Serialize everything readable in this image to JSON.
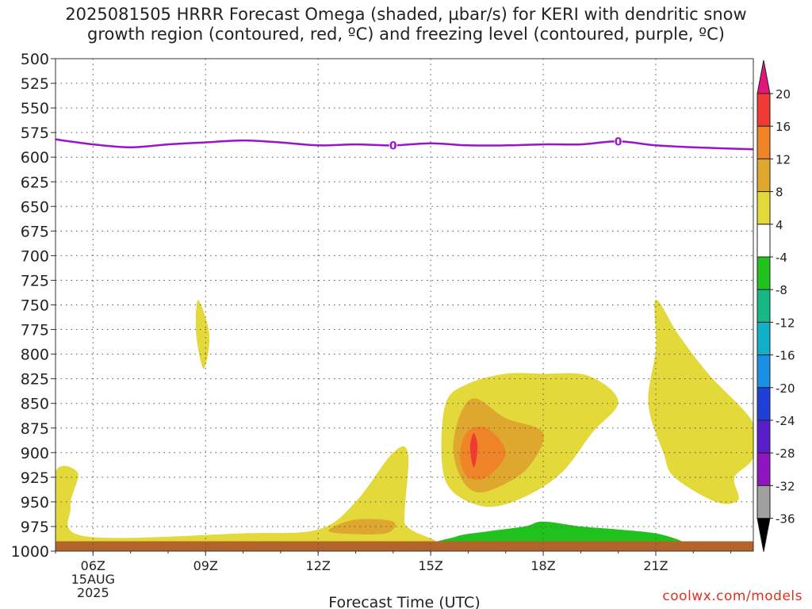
{
  "title_line1": "2025081505 HRRR Forecast Omega (shaded, µbar/s) for KERI with dendritic snow",
  "title_line2": "growth region (contoured, red, ºC) and freezing level (contoured, purple, ºC)",
  "credit": "coolwx.com/models",
  "chart_data": {
    "type": "contour",
    "xlabel": "Forecast Time (UTC)",
    "ylabel": "",
    "x_unit": "forecast hour (UTC, 15 Aug 2025)",
    "xlim": [
      5,
      23.6
    ],
    "ylim": [
      1000,
      500
    ],
    "y_ticks": [
      500,
      525,
      550,
      575,
      600,
      625,
      650,
      675,
      700,
      725,
      750,
      775,
      800,
      825,
      850,
      875,
      900,
      925,
      950,
      975,
      1000
    ],
    "x_ticks": [
      {
        "x": 6,
        "label": "06Z",
        "sub": [
          "15AUG",
          "2025"
        ]
      },
      {
        "x": 9,
        "label": "09Z",
        "sub": []
      },
      {
        "x": 12,
        "label": "12Z",
        "sub": []
      },
      {
        "x": 15,
        "label": "15Z",
        "sub": []
      },
      {
        "x": 18,
        "label": "18Z",
        "sub": []
      },
      {
        "x": 21,
        "label": "21Z",
        "sub": []
      }
    ],
    "grid": true,
    "colorbar": {
      "labels": [
        "20",
        "16",
        "12",
        "8",
        "4",
        "-4",
        "-8",
        "-12",
        "-16",
        "-20",
        "-24",
        "-28",
        "-32",
        "-36"
      ],
      "colors": [
        "#e2157a",
        "#ef3a36",
        "#ef8328",
        "#e0a72e",
        "#e3d93b",
        "#ffffff",
        "#22c21e",
        "#17b886",
        "#12b0c8",
        "#1a8fe6",
        "#1f3fd6",
        "#5a1ec8",
        "#8f16be",
        "#a0a0a0",
        "#000000"
      ]
    },
    "freezing_level": {
      "color": "#9a14c9",
      "label": "0",
      "label_points": [
        [
          14,
          588
        ],
        [
          20,
          584
        ]
      ],
      "points": [
        [
          5,
          582
        ],
        [
          6,
          587
        ],
        [
          7,
          590
        ],
        [
          8,
          587
        ],
        [
          9,
          585
        ],
        [
          10,
          583
        ],
        [
          11,
          585
        ],
        [
          12,
          588
        ],
        [
          13,
          587
        ],
        [
          14,
          588
        ],
        [
          15,
          586
        ],
        [
          16,
          588
        ],
        [
          17,
          588
        ],
        [
          18,
          587
        ],
        [
          19,
          587
        ],
        [
          20,
          584
        ],
        [
          21,
          588
        ],
        [
          22,
          590
        ],
        [
          23.6,
          592
        ]
      ]
    },
    "omega_regions": [
      {
        "level": "4 to 8",
        "color": "#e3d93b",
        "points": [
          [
            5,
            920
          ],
          [
            5.6,
            921
          ],
          [
            5.4,
            955
          ],
          [
            5.8,
            985
          ],
          [
            10,
            982
          ],
          [
            12,
            978
          ],
          [
            13,
            950
          ],
          [
            14,
            900
          ],
          [
            14.4,
            902
          ],
          [
            14.3,
            970
          ],
          [
            14.5,
            995
          ],
          [
            5,
            995
          ]
        ]
      },
      {
        "level": "4 to 8",
        "color": "#e3d93b",
        "points": [
          [
            8.8,
            745
          ],
          [
            9.1,
            780
          ],
          [
            8.95,
            815
          ],
          [
            8.75,
            780
          ]
        ]
      },
      {
        "level": "4 to 8",
        "color": "#e3d93b",
        "points": [
          [
            15.3,
            910
          ],
          [
            15.4,
            850
          ],
          [
            16,
            830
          ],
          [
            17,
            820
          ],
          [
            18,
            820
          ],
          [
            19.2,
            822
          ],
          [
            20,
            848
          ],
          [
            19.3,
            880
          ],
          [
            18.5,
            920
          ],
          [
            17.5,
            945
          ],
          [
            16.5,
            955
          ],
          [
            15.6,
            940
          ]
        ]
      },
      {
        "level": "4 to 8",
        "color": "#e3d93b",
        "points": [
          [
            20.8,
            850
          ],
          [
            21,
            795
          ],
          [
            21,
            745
          ],
          [
            21.6,
            780
          ],
          [
            22.4,
            820
          ],
          [
            23.6,
            870
          ],
          [
            23.6,
            905
          ],
          [
            23.1,
            925
          ],
          [
            23.2,
            948
          ],
          [
            22.6,
            950
          ],
          [
            21.5,
            925
          ],
          [
            21.2,
            900
          ]
        ]
      },
      {
        "level": "8 to 12",
        "color": "#e0a72e",
        "points": [
          [
            12.3,
            978
          ],
          [
            13,
            968
          ],
          [
            14,
            970
          ],
          [
            13.8,
            982
          ],
          [
            12.6,
            982
          ]
        ]
      },
      {
        "level": "8 to 12",
        "color": "#e0a72e",
        "points": [
          [
            15.6,
            895
          ],
          [
            15.8,
            860
          ],
          [
            16.2,
            845
          ],
          [
            17,
            865
          ],
          [
            18,
            880
          ],
          [
            17.6,
            915
          ],
          [
            16.8,
            935
          ],
          [
            16.2,
            940
          ],
          [
            15.8,
            925
          ]
        ]
      },
      {
        "level": "12 to 16",
        "color": "#ef8328",
        "points": [
          [
            15.8,
            895
          ],
          [
            16,
            878
          ],
          [
            16.5,
            875
          ],
          [
            17,
            900
          ],
          [
            16.5,
            925
          ],
          [
            16,
            925
          ],
          [
            15.8,
            910
          ]
        ]
      },
      {
        "level": "16 to 20",
        "color": "#ef3a36",
        "points": [
          [
            16.05,
            895
          ],
          [
            16.15,
            880
          ],
          [
            16.25,
            895
          ],
          [
            16.15,
            915
          ]
        ]
      },
      {
        "level": "-8 to -4",
        "color": "#22c21e",
        "points": [
          [
            15.5,
            995
          ],
          [
            15.7,
            985
          ],
          [
            16.5,
            980
          ],
          [
            17.5,
            975
          ],
          [
            18,
            970
          ],
          [
            19,
            975
          ],
          [
            20,
            978
          ],
          [
            21,
            982
          ],
          [
            21.7,
            990
          ],
          [
            21.7,
            995
          ]
        ]
      }
    ],
    "surface": {
      "color": "#b3642a",
      "range": [
        990,
        1000
      ]
    }
  }
}
